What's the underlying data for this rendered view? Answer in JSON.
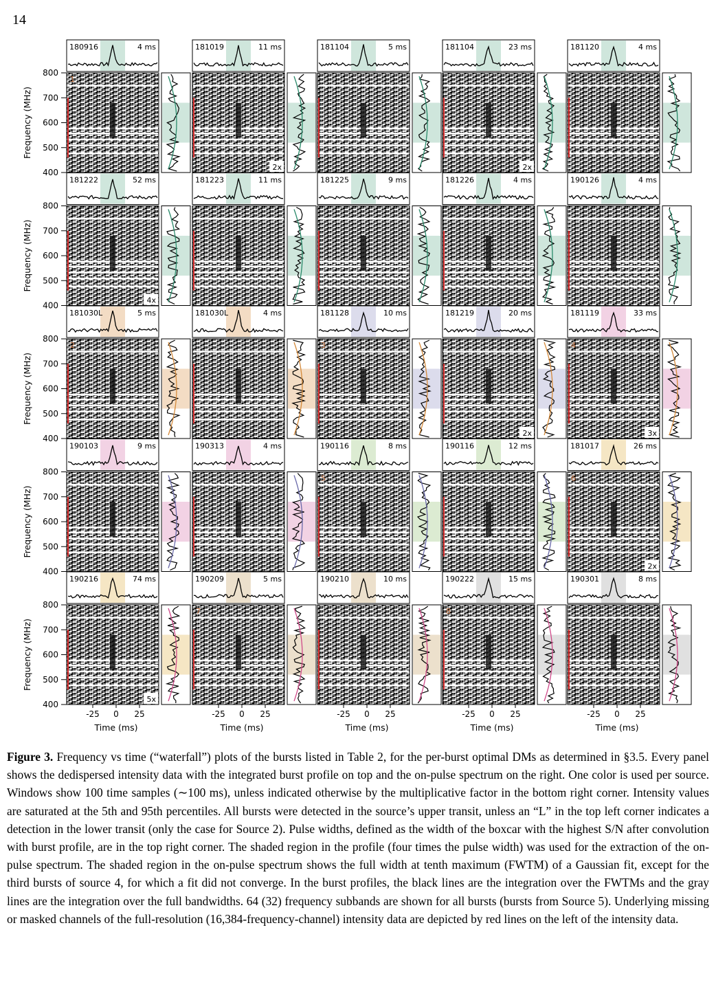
{
  "page_number": "14",
  "rows": [
    {
      "ylabel": "Frequency (MHz)",
      "yticks": [
        "800",
        "700",
        "600",
        "500",
        "400"
      ],
      "panels": [
        {
          "date": "180916",
          "width": "4 ms",
          "color": "#cfe6dc",
          "source": "1",
          "factor": ""
        },
        {
          "date": "181019",
          "width": "11 ms",
          "color": "#cfe6dc",
          "source": "",
          "factor": "2x"
        },
        {
          "date": "181104",
          "width": "5 ms",
          "color": "#cfe6dc",
          "source": "",
          "factor": ""
        },
        {
          "date": "181104",
          "width": "23 ms",
          "color": "#cfe6dc",
          "source": "",
          "factor": "2x"
        },
        {
          "date": "181120",
          "width": "4 ms",
          "color": "#cfe6dc",
          "source": "",
          "factor": ""
        }
      ]
    },
    {
      "ylabel": "Frequency (MHz)",
      "yticks": [
        "800",
        "700",
        "600",
        "500",
        "400"
      ],
      "panels": [
        {
          "date": "181222",
          "width": "52 ms",
          "color": "#cfe6dc",
          "source": "",
          "factor": "4x"
        },
        {
          "date": "181223",
          "width": "11 ms",
          "color": "#cfe6dc",
          "source": "",
          "factor": ""
        },
        {
          "date": "181225",
          "width": "9 ms",
          "color": "#cfe6dc",
          "source": "",
          "factor": ""
        },
        {
          "date": "181226",
          "width": "4 ms",
          "color": "#cfe6dc",
          "source": "",
          "factor": ""
        },
        {
          "date": "190126",
          "width": "4 ms",
          "color": "#cfe6dc",
          "source": "",
          "factor": ""
        }
      ]
    },
    {
      "ylabel": "Frequency (MHz)",
      "yticks": [
        "800",
        "700",
        "600",
        "500",
        "400"
      ],
      "panels": [
        {
          "date": "181030L",
          "width": "5 ms",
          "color": "#f3dcc4",
          "source": "2",
          "factor": ""
        },
        {
          "date": "181030L",
          "width": "4 ms",
          "color": "#f3dcc4",
          "source": "",
          "factor": ""
        },
        {
          "date": "181128",
          "width": "10 ms",
          "color": "#dcdcec",
          "source": "3",
          "factor": ""
        },
        {
          "date": "181219",
          "width": "20 ms",
          "color": "#dcdcec",
          "source": "",
          "factor": "2x"
        },
        {
          "date": "181119",
          "width": "33 ms",
          "color": "#f2d2e4",
          "source": "4",
          "factor": "3x"
        }
      ]
    },
    {
      "ylabel": "Frequency (MHz)",
      "yticks": [
        "800",
        "700",
        "600",
        "500",
        "400"
      ],
      "panels": [
        {
          "date": "190103",
          "width": "9 ms",
          "color": "#f2d2e4",
          "source": "",
          "factor": ""
        },
        {
          "date": "190313",
          "width": "4 ms",
          "color": "#f2d2e4",
          "source": "",
          "factor": ""
        },
        {
          "date": "190116",
          "width": "8 ms",
          "color": "#dcebd2",
          "source": "5",
          "factor": ""
        },
        {
          "date": "190116",
          "width": "12 ms",
          "color": "#dcebd2",
          "source": "",
          "factor": ""
        },
        {
          "date": "181017",
          "width": "26 ms",
          "color": "#f5e6c4",
          "source": "6",
          "factor": "2x"
        }
      ]
    },
    {
      "ylabel": "Frequency (MHz)",
      "yticks": [
        "800",
        "700",
        "600",
        "500",
        "400"
      ],
      "panels": [
        {
          "date": "190216",
          "width": "74 ms",
          "color": "#f5e6c4",
          "source": "",
          "factor": "5x"
        },
        {
          "date": "190209",
          "width": "5 ms",
          "color": "#ece0cc",
          "source": "7",
          "factor": ""
        },
        {
          "date": "190210",
          "width": "10 ms",
          "color": "#ece0cc",
          "source": "",
          "factor": ""
        },
        {
          "date": "190222",
          "width": "15 ms",
          "color": "#e0e0e0",
          "source": "8",
          "factor": ""
        },
        {
          "date": "190301",
          "width": "8 ms",
          "color": "#e0e0e0",
          "source": "",
          "factor": ""
        }
      ]
    }
  ],
  "xticks": [
    "-25",
    "0",
    "25"
  ],
  "xlabel": "Time (ms)",
  "caption": {
    "label": "Figure 3.",
    "text": "Frequency vs time (“waterfall”) plots of the bursts listed in Table 2, for the per-burst optimal DMs as determined in §3.5. Every panel shows the dedispersed intensity data with the integrated burst profile on top and the on-pulse spectrum on the right. One color is used per source. Windows show 100 time samples (∼100 ms), unless indicated otherwise by the multiplicative factor in the bottom right corner. Intensity values are saturated at the 5th and 95th percentiles. All bursts were detected in the source’s upper transit, unless an “L” in the top left corner indicates a detection in the lower transit (only the case for Source 2). Pulse widths, defined as the width of the boxcar with the highest S/N after convolution with burst profile, are in the top right corner. The shaded region in the profile (four times the pulse width) was used for the extraction of the on-pulse spectrum. The shaded region in the on-pulse spectrum shows the full width at tenth maximum (FWTM) of a Gaussian fit, except for the third bursts of source 4, for which a fit did not converge. In the burst profiles, the black lines are the integration over the FWTMs and the gray lines are the integration over the full bandwidths. 64 (32) frequency subbands are shown for all bursts (bursts from Source 5). Underlying missing or masked channels of the full-resolution (16,384-frequency-channel) intensity data are depicted by red lines on the left of the intensity data."
  }
}
